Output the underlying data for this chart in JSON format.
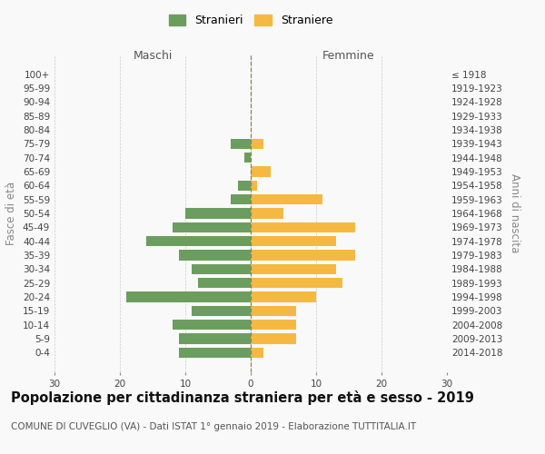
{
  "age_groups": [
    "100+",
    "95-99",
    "90-94",
    "85-89",
    "80-84",
    "75-79",
    "70-74",
    "65-69",
    "60-64",
    "55-59",
    "50-54",
    "45-49",
    "40-44",
    "35-39",
    "30-34",
    "25-29",
    "20-24",
    "15-19",
    "10-14",
    "5-9",
    "0-4"
  ],
  "birth_years": [
    "≤ 1918",
    "1919-1923",
    "1924-1928",
    "1929-1933",
    "1934-1938",
    "1939-1943",
    "1944-1948",
    "1949-1953",
    "1954-1958",
    "1959-1963",
    "1964-1968",
    "1969-1973",
    "1974-1978",
    "1979-1983",
    "1984-1988",
    "1989-1993",
    "1994-1998",
    "1999-2003",
    "2004-2008",
    "2009-2013",
    "2014-2018"
  ],
  "stranieri": [
    0,
    0,
    0,
    0,
    0,
    3,
    1,
    0,
    2,
    3,
    10,
    12,
    16,
    11,
    9,
    8,
    19,
    9,
    12,
    11,
    11
  ],
  "straniere": [
    0,
    0,
    0,
    0,
    0,
    2,
    0,
    3,
    1,
    11,
    5,
    16,
    13,
    16,
    13,
    14,
    10,
    7,
    7,
    7,
    2
  ],
  "color_stranieri": "#6b9e5e",
  "color_straniere": "#f5b942",
  "xlim": 30,
  "title": "Popolazione per cittadinanza straniera per età e sesso - 2019",
  "subtitle": "COMUNE DI CUVEGLIO (VA) - Dati ISTAT 1° gennaio 2019 - Elaborazione TUTTITALIA.IT",
  "ylabel_left": "Fasce di età",
  "ylabel_right": "Anni di nascita",
  "label_maschi": "Maschi",
  "label_femmine": "Femmine",
  "legend_stranieri": "Stranieri",
  "legend_straniere": "Straniere",
  "bg_color": "#f9f9f9",
  "grid_color": "#cccccc",
  "title_fontsize": 10.5,
  "subtitle_fontsize": 7.5,
  "axis_label_fontsize": 8.5,
  "tick_fontsize": 7.5
}
